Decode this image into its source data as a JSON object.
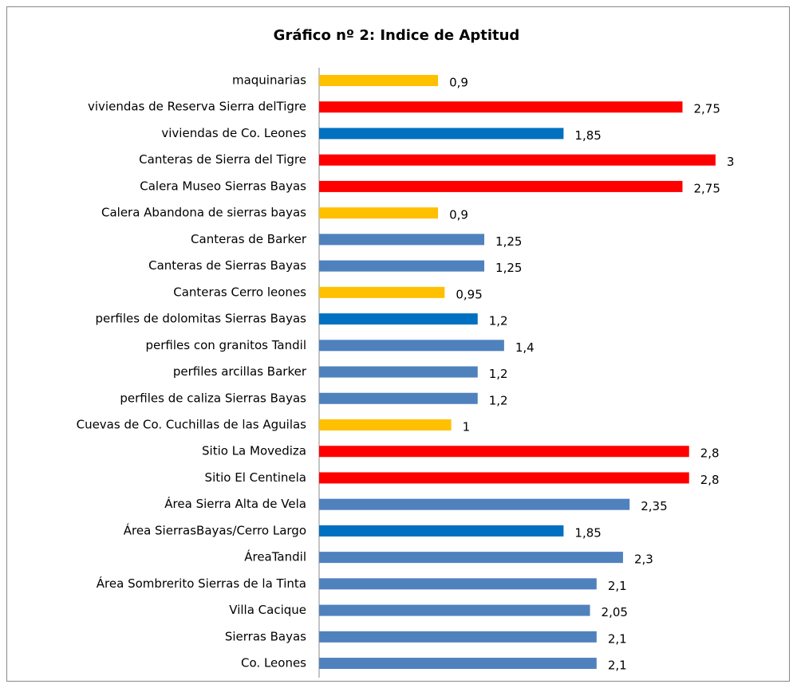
{
  "chart_data": {
    "type": "bar",
    "orientation": "horizontal",
    "title": "Gráfico nº 2: Indice de Aptitud",
    "categories": [
      "maquinarias",
      "viviendas de  Reserva Sierra delTigre",
      "viviendas de Co. Leones",
      "Canteras de Sierra del Tigre",
      "Calera Museo Sierras Bayas",
      "Calera Abandona de  sierras bayas",
      "Canteras de Barker",
      "Canteras de Sierras Bayas",
      "Canteras Cerro leones",
      "perfiles de dolomitas Sierras Bayas",
      "perfiles con granitos Tandil",
      "perfiles arcillas Barker",
      "perfiles de caliza Sierras Bayas",
      "Cuevas de Co. Cuchillas de las Aguilas",
      "Sitio La Movediza",
      "Sitio El Centinela",
      "Área Sierra Alta de Vela",
      "Área SierrasBayas/Cerro Largo",
      "ÁreaTandil",
      "Área Sombrerito Sierras de la Tinta",
      "Villa Cacique",
      "Sierras Bayas",
      "Co. Leones"
    ],
    "values": [
      0.9,
      2.75,
      1.85,
      3,
      2.75,
      0.9,
      1.25,
      1.25,
      0.95,
      1.2,
      1.4,
      1.2,
      1.2,
      1,
      2.8,
      2.8,
      2.35,
      1.85,
      2.3,
      2.1,
      2.05,
      2.1,
      2.1
    ],
    "value_labels": [
      "0,9",
      "2,75",
      "1,85",
      "3",
      "2,75",
      "0,9",
      "1,25",
      "1,25",
      "0,95",
      "1,2",
      "1,4",
      "1,2",
      "1,2",
      "1",
      "2,8",
      "2,8",
      "2,35",
      "1,85",
      "2,3",
      "2,1",
      "2,05",
      "2,1",
      "2,1"
    ],
    "colors": [
      "#ffc000",
      "#ff0000",
      "#0070c0",
      "#ff0000",
      "#ff0000",
      "#ffc000",
      "#4f81bd",
      "#4f81bd",
      "#ffc000",
      "#0070c0",
      "#4f81bd",
      "#4f81bd",
      "#4f81bd",
      "#ffc000",
      "#ff0000",
      "#ff0000",
      "#4f81bd",
      "#0070c0",
      "#4f81bd",
      "#4f81bd",
      "#4f81bd",
      "#4f81bd",
      "#4f81bd"
    ],
    "xlim": [
      0,
      3.2
    ]
  }
}
